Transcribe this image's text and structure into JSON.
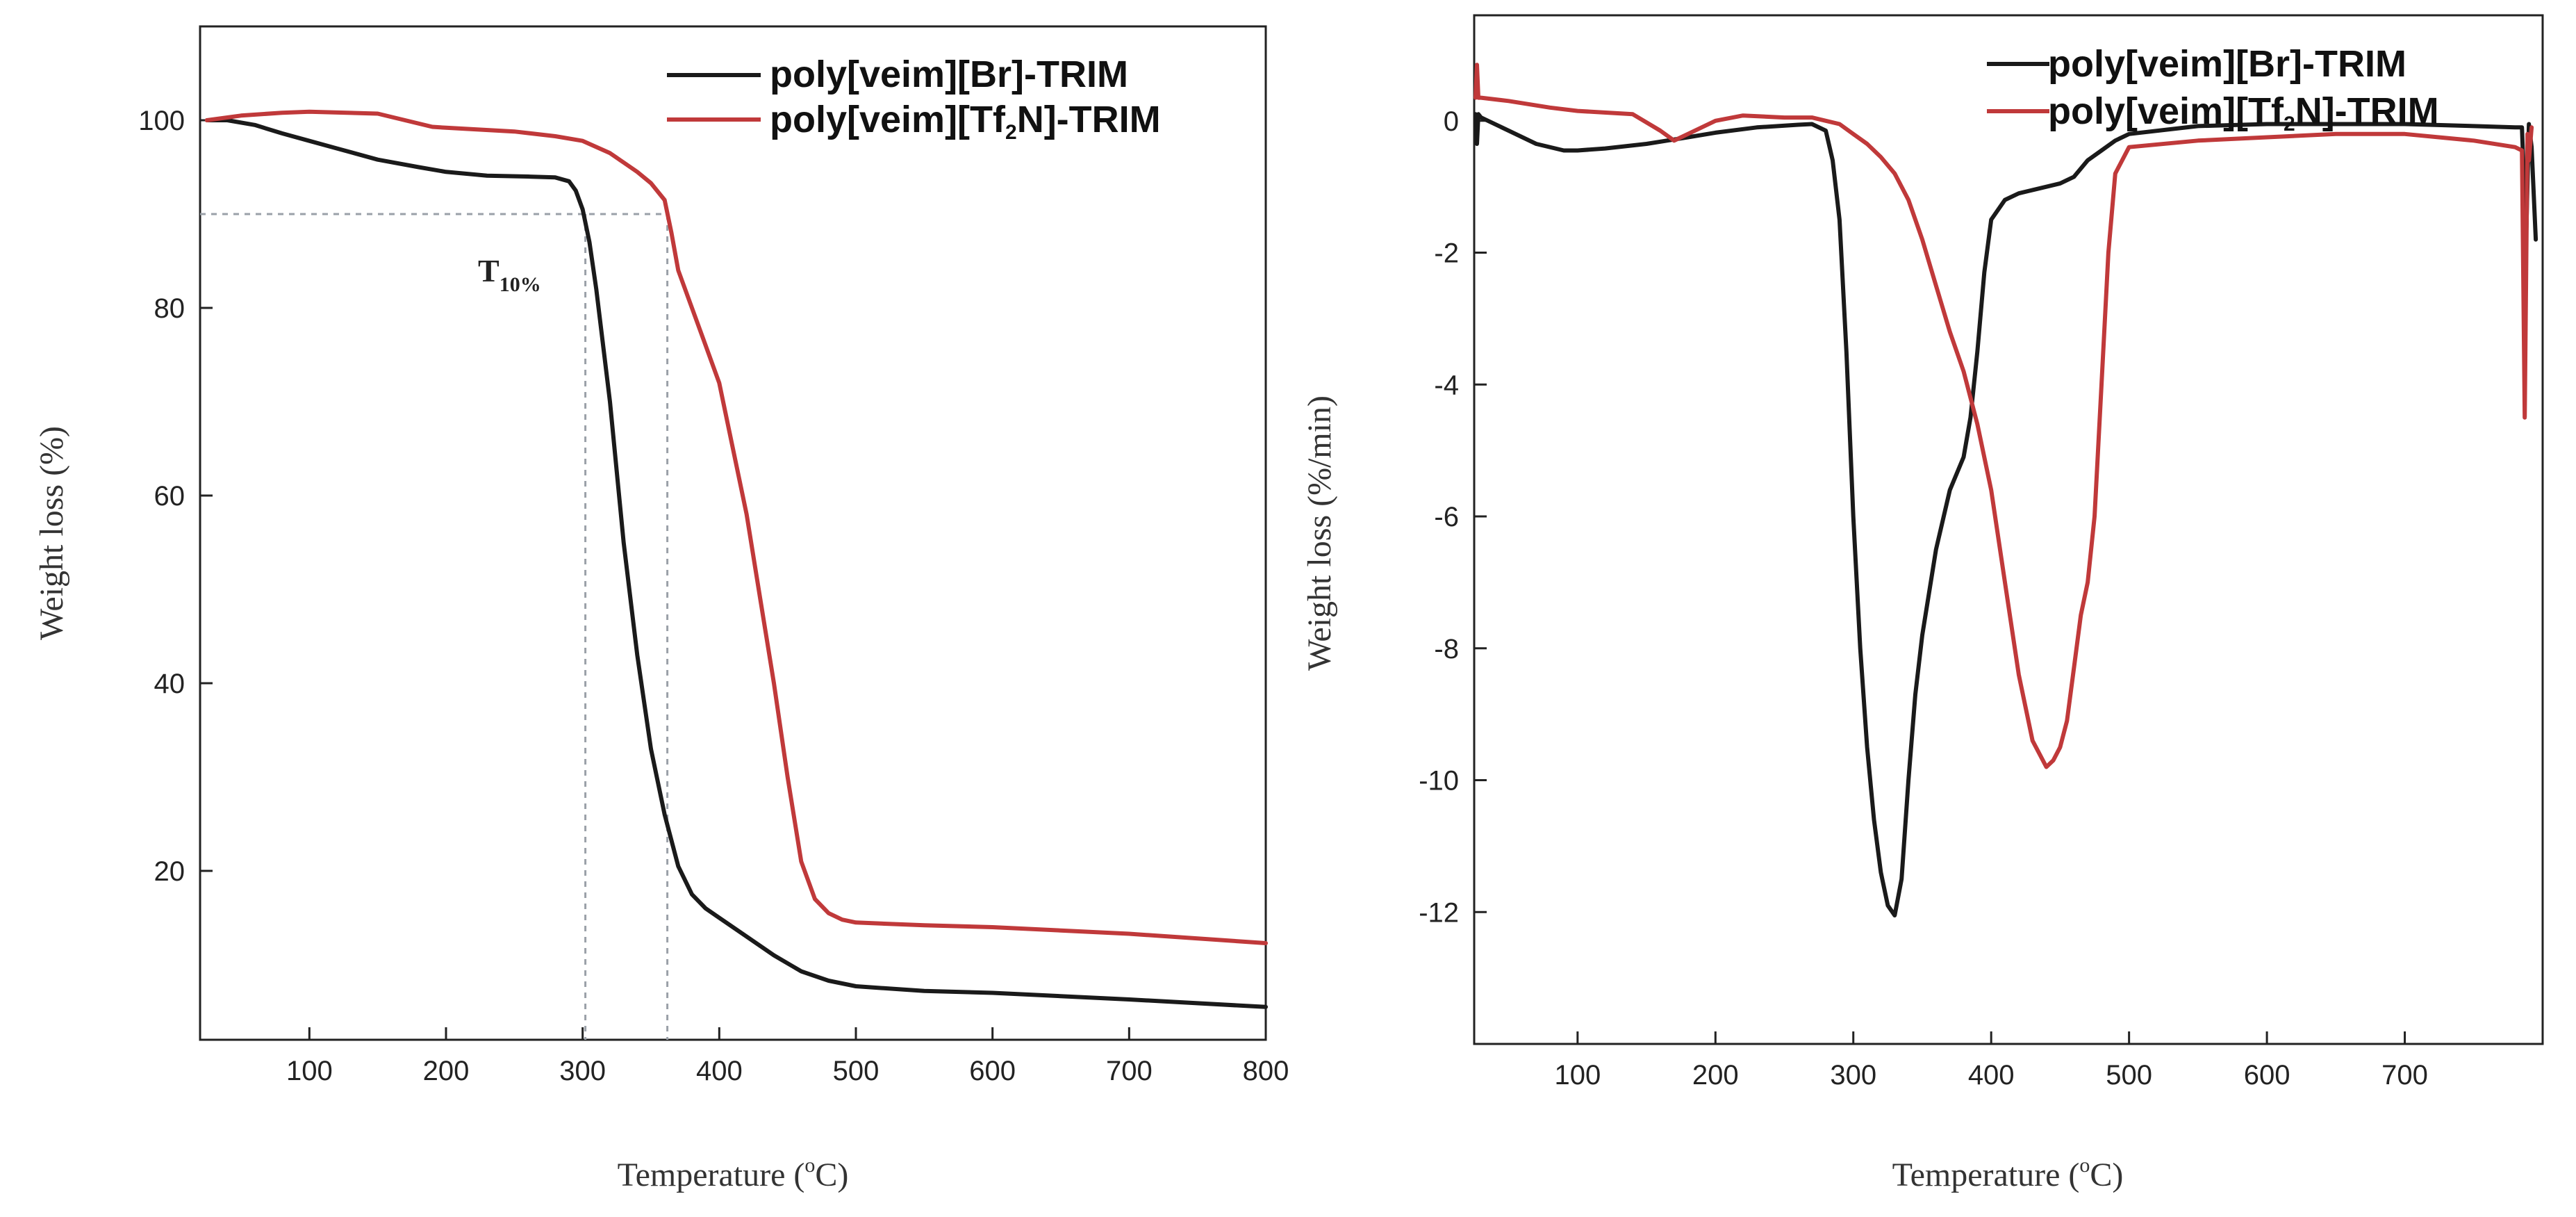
{
  "colors": {
    "br": "#1a1a1a",
    "tf2n": "#c0393a",
    "axis": "#222222",
    "guide": "#9aa0a8"
  },
  "chart_data": [
    {
      "type": "line",
      "panel": "left",
      "title": "",
      "xlabel_main": "Temperature (",
      "xlabel_sup": "o",
      "xlabel_end": "C)",
      "ylabel": "Weight loss (%)",
      "xlim": [
        20,
        800
      ],
      "ylim": [
        2,
        110
      ],
      "x_ticks": [
        100,
        200,
        300,
        400,
        500,
        600,
        700,
        800
      ],
      "y_ticks": [
        20,
        40,
        60,
        80,
        100
      ],
      "legend": [
        {
          "name": "poly[veim][Br]-TRIM",
          "parts": [
            "poly[veim][Br]-TRIM",
            "",
            ""
          ]
        },
        {
          "name": "poly[veim][Tf2N]-TRIM",
          "parts": [
            "poly[veim][Tf",
            "2",
            "N]-TRIM"
          ]
        }
      ],
      "annotation": {
        "main": "T",
        "sub": "10%"
      },
      "guides": {
        "y_level": 90,
        "x_values": [
          302,
          362
        ]
      },
      "series": [
        {
          "name": "poly[veim][Br]-TRIM",
          "color_key": "br",
          "x": [
            25,
            40,
            60,
            80,
            100,
            120,
            150,
            180,
            200,
            230,
            260,
            280,
            290,
            295,
            300,
            305,
            310,
            320,
            330,
            340,
            350,
            360,
            370,
            380,
            390,
            400,
            420,
            440,
            460,
            480,
            500,
            550,
            600,
            700,
            800
          ],
          "y": [
            100,
            100,
            99.5,
            98.6,
            97.8,
            97,
            95.8,
            95,
            94.5,
            94.1,
            94,
            93.9,
            93.5,
            92.5,
            90.5,
            87,
            82,
            70,
            55,
            43,
            33,
            26,
            20.5,
            17.5,
            16,
            15,
            13,
            11,
            9.3,
            8.3,
            7.7,
            7.2,
            7,
            6.3,
            5.5
          ]
        },
        {
          "name": "poly[veim][Tf2N]-TRIM",
          "color_key": "tf2n",
          "x": [
            25,
            50,
            80,
            100,
            150,
            170,
            190,
            200,
            250,
            280,
            300,
            320,
            330,
            340,
            350,
            360,
            365,
            370,
            380,
            390,
            400,
            410,
            420,
            430,
            440,
            450,
            460,
            470,
            480,
            490,
            500,
            550,
            600,
            700,
            800
          ],
          "y": [
            100,
            100.5,
            100.8,
            100.9,
            100.7,
            100,
            99.3,
            99.2,
            98.8,
            98.3,
            97.8,
            96.5,
            95.5,
            94.5,
            93.3,
            91.5,
            88,
            84,
            80,
            76,
            72,
            65,
            58,
            49,
            40,
            30,
            21,
            17,
            15.5,
            14.8,
            14.5,
            14.2,
            14,
            13.3,
            12.3
          ]
        }
      ]
    },
    {
      "type": "line",
      "panel": "right",
      "title": "",
      "xlabel_main": "Temperature (",
      "xlabel_sup": "o",
      "xlabel_end": "C)",
      "ylabel": "Weight loss (%/min)",
      "xlim": [
        25,
        800
      ],
      "ylim": [
        -14,
        1.6
      ],
      "x_ticks": [
        100,
        200,
        300,
        400,
        500,
        600,
        700
      ],
      "y_ticks": [
        0,
        -2,
        -4,
        -6,
        -8,
        -10,
        -12
      ],
      "legend": [
        {
          "name": "poly[veim][Br]-TRIM",
          "parts": [
            "poly[veim][Br]-TRIM",
            "",
            ""
          ]
        },
        {
          "name": "poly[veim][Tf2N]-TRIM",
          "parts": [
            "poly[veim][Tf",
            "2",
            "N]-TRIM"
          ]
        }
      ],
      "series": [
        {
          "name": "poly[veim][Br]-TRIM",
          "color_key": "br",
          "x": [
            26,
            27,
            28,
            30,
            50,
            70,
            90,
            100,
            120,
            150,
            180,
            200,
            230,
            260,
            270,
            280,
            285,
            290,
            295,
            300,
            305,
            310,
            315,
            320,
            325,
            330,
            335,
            340,
            345,
            350,
            360,
            370,
            380,
            385,
            390,
            395,
            400,
            410,
            420,
            430,
            440,
            450,
            460,
            470,
            480,
            490,
            500,
            550,
            600,
            650,
            700,
            750,
            780,
            785,
            788,
            790,
            792,
            795
          ],
          "y": [
            0.1,
            -0.35,
            0.1,
            0.05,
            -0.15,
            -0.35,
            -0.45,
            -0.45,
            -0.42,
            -0.35,
            -0.25,
            -0.18,
            -0.1,
            -0.06,
            -0.05,
            -0.15,
            -0.6,
            -1.5,
            -3.5,
            -6,
            -8,
            -9.5,
            -10.6,
            -11.4,
            -11.9,
            -12.05,
            -11.5,
            -10,
            -8.7,
            -7.8,
            -6.5,
            -5.6,
            -5.1,
            -4.5,
            -3.5,
            -2.3,
            -1.5,
            -1.2,
            -1.1,
            -1.05,
            -1,
            -0.95,
            -0.85,
            -0.6,
            -0.45,
            -0.3,
            -0.2,
            -0.08,
            -0.05,
            -0.05,
            -0.05,
            -0.08,
            -0.1,
            -0.1,
            -1.8,
            -0.05,
            -0.4,
            -1.8
          ]
        },
        {
          "name": "poly[veim][Tf2N]-TRIM",
          "color_key": "tf2n",
          "x": [
            26,
            27,
            28,
            30,
            50,
            80,
            100,
            140,
            160,
            170,
            180,
            200,
            220,
            250,
            270,
            280,
            290,
            300,
            310,
            320,
            330,
            340,
            350,
            360,
            370,
            380,
            390,
            400,
            410,
            420,
            430,
            440,
            445,
            450,
            455,
            460,
            465,
            470,
            475,
            480,
            485,
            490,
            500,
            550,
            600,
            650,
            700,
            750,
            780,
            785,
            787,
            789,
            790,
            792
          ],
          "y": [
            0.35,
            0.85,
            0.35,
            0.35,
            0.3,
            0.2,
            0.15,
            0.1,
            -0.15,
            -0.3,
            -0.2,
            0,
            0.08,
            0.05,
            0.05,
            0,
            -0.05,
            -0.2,
            -0.35,
            -0.55,
            -0.8,
            -1.2,
            -1.8,
            -2.5,
            -3.2,
            -3.8,
            -4.6,
            -5.6,
            -7,
            -8.4,
            -9.4,
            -9.8,
            -9.7,
            -9.5,
            -9.1,
            -8.3,
            -7.5,
            -7,
            -6,
            -4,
            -2,
            -0.8,
            -0.4,
            -0.3,
            -0.25,
            -0.2,
            -0.2,
            -0.3,
            -0.4,
            -0.45,
            -4.5,
            -0.2,
            -0.6,
            -0.1
          ]
        }
      ]
    }
  ]
}
